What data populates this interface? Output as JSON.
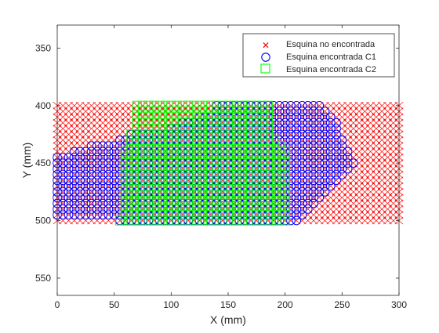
{
  "chart_data": {
    "type": "scatter",
    "title": "",
    "xlabel": "X (mm)",
    "ylabel": "Y (mm)",
    "xlim": [
      0,
      300
    ],
    "ylim": [
      330,
      565
    ],
    "y_reversed": true,
    "grid": false,
    "x_ticks": [
      0,
      50,
      100,
      150,
      200,
      250,
      300
    ],
    "y_ticks": [
      350,
      400,
      450,
      500,
      550
    ],
    "x_tick_labels": [
      "0",
      "50",
      "100",
      "150",
      "200",
      "250",
      "300"
    ],
    "y_tick_labels": [
      "350",
      "400",
      "450",
      "500",
      "550"
    ],
    "legend_position": "top-right",
    "grid_step": 5,
    "series": [
      {
        "name": "Esquina no encontrada",
        "marker": "x",
        "color": "#ff0000",
        "region": {
          "x": [
            0,
            300
          ],
          "y": [
            400,
            500
          ]
        }
      },
      {
        "name": "Esquina encontrada C1",
        "marker": "o",
        "color": "#0000ff",
        "rows": [
          {
            "y": 400,
            "x": [
              140,
              230
            ]
          },
          {
            "y": 405,
            "x": [
              140,
              235
            ]
          },
          {
            "y": 410,
            "x": [
              125,
              240
            ]
          },
          {
            "y": 415,
            "x": [
              110,
              245
            ]
          },
          {
            "y": 420,
            "x": [
              100,
              245
            ]
          },
          {
            "y": 425,
            "x": [
              65,
              245
            ]
          },
          {
            "y": 430,
            "x": [
              55,
              250
            ]
          },
          {
            "y": 435,
            "x": [
              30,
              250
            ]
          },
          {
            "y": 440,
            "x": [
              15,
              255
            ]
          },
          {
            "y": 445,
            "x": [
              0,
              255
            ]
          },
          {
            "y": 450,
            "x": [
              0,
              260
            ]
          },
          {
            "y": 455,
            "x": [
              0,
              255
            ]
          },
          {
            "y": 460,
            "x": [
              0,
              250
            ]
          },
          {
            "y": 465,
            "x": [
              0,
              245
            ]
          },
          {
            "y": 470,
            "x": [
              0,
              240
            ]
          },
          {
            "y": 475,
            "x": [
              0,
              235
            ]
          },
          {
            "y": 480,
            "x": [
              0,
              230
            ]
          },
          {
            "y": 485,
            "x": [
              0,
              225
            ]
          },
          {
            "y": 490,
            "x": [
              0,
              220
            ]
          },
          {
            "y": 495,
            "x": [
              0,
              215
            ]
          },
          {
            "y": 500,
            "x": [
              55,
              210
            ]
          }
        ]
      },
      {
        "name": "Esquina encontrada C2",
        "marker": "s",
        "color": "#00ff00",
        "rows": [
          {
            "y": 400,
            "x": [
              70,
              185
            ]
          },
          {
            "y": 405,
            "x": [
              70,
              185
            ]
          },
          {
            "y": 410,
            "x": [
              70,
              185
            ]
          },
          {
            "y": 415,
            "x": [
              70,
              185
            ]
          },
          {
            "y": 420,
            "x": [
              70,
              185
            ]
          },
          {
            "y": 425,
            "x": [
              65,
              185
            ]
          },
          {
            "y": 430,
            "x": [
              65,
              190
            ]
          },
          {
            "y": 435,
            "x": [
              65,
              195
            ]
          },
          {
            "y": 440,
            "x": [
              60,
              200
            ]
          },
          {
            "y": 445,
            "x": [
              60,
              200
            ]
          },
          {
            "y": 450,
            "x": [
              60,
              200
            ]
          },
          {
            "y": 455,
            "x": [
              60,
              200
            ]
          },
          {
            "y": 460,
            "x": [
              60,
              200
            ]
          },
          {
            "y": 465,
            "x": [
              60,
              200
            ]
          },
          {
            "y": 470,
            "x": [
              60,
              200
            ]
          },
          {
            "y": 475,
            "x": [
              60,
              200
            ]
          },
          {
            "y": 480,
            "x": [
              60,
              200
            ]
          },
          {
            "y": 485,
            "x": [
              60,
              200
            ]
          },
          {
            "y": 490,
            "x": [
              60,
              200
            ]
          },
          {
            "y": 495,
            "x": [
              60,
              200
            ]
          },
          {
            "y": 500,
            "x": [
              55,
              200
            ]
          }
        ]
      }
    ]
  }
}
